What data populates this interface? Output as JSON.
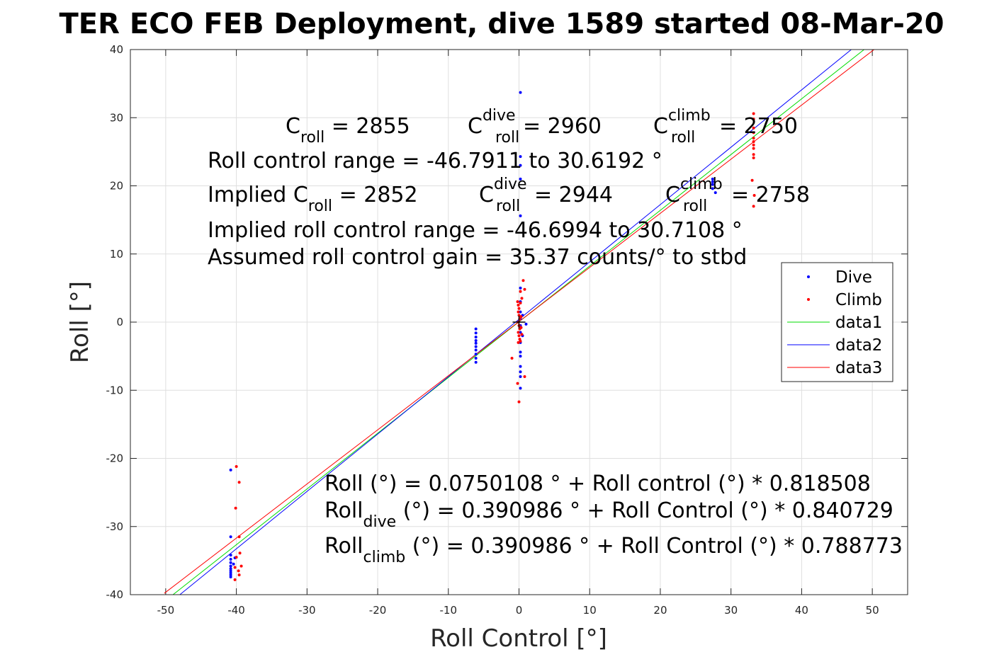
{
  "chart_data": {
    "type": "scatter",
    "title": "TER ECO FEB Deployment, dive 1589 started 08-Mar-20",
    "xlabel": "Roll Control [°]",
    "ylabel": "Roll [°]",
    "xlim": [
      -55,
      55
    ],
    "ylim": [
      -40,
      40
    ],
    "xticks": [
      -50,
      -40,
      -30,
      -20,
      -10,
      0,
      10,
      20,
      30,
      40,
      50
    ],
    "yticks": [
      -40,
      -30,
      -20,
      -10,
      0,
      10,
      20,
      30,
      40
    ],
    "xtick_labels": [
      "-50",
      "-40",
      "-30",
      "-20",
      "-10",
      "0",
      "10",
      "20",
      "30",
      "40",
      "50"
    ],
    "ytick_labels": [
      "-40",
      "-30",
      "-20",
      "-10",
      "0",
      "10",
      "20",
      "30",
      "40"
    ],
    "grid": true,
    "legend_position": "right",
    "series": [
      {
        "name": "Dive",
        "kind": "points",
        "color": "#0000ff",
        "points": [
          [
            -40.8,
            -21.7
          ],
          [
            -40.8,
            -31.5
          ],
          [
            -40.8,
            -34.2
          ],
          [
            -40.8,
            -34.8
          ],
          [
            -40.8,
            -35.3
          ],
          [
            -40.8,
            -35.8
          ],
          [
            -40.8,
            -36.2
          ],
          [
            -40.8,
            -36.5
          ],
          [
            -40.8,
            -36.8
          ],
          [
            -40.8,
            -37.1
          ],
          [
            -40.8,
            -37.4
          ],
          [
            -40.2,
            -34.6
          ],
          [
            -40.4,
            -35.5
          ],
          [
            -6.1,
            -1.0
          ],
          [
            -6.1,
            -1.6
          ],
          [
            -6.1,
            -2.2
          ],
          [
            -6.1,
            -2.7
          ],
          [
            -6.1,
            -3.1
          ],
          [
            -6.1,
            -3.6
          ],
          [
            -6.1,
            -4.1
          ],
          [
            -6.1,
            -4.7
          ],
          [
            -6.1,
            -5.3
          ],
          [
            -6.1,
            -5.9
          ],
          [
            0.2,
            33.7
          ],
          [
            0.2,
            24.3
          ],
          [
            0.2,
            23.0
          ],
          [
            0.2,
            21.0
          ],
          [
            0.2,
            15.6
          ],
          [
            0.2,
            5.0
          ],
          [
            0.2,
            3.0
          ],
          [
            0.2,
            1.5
          ],
          [
            0.2,
            0.5
          ],
          [
            0.2,
            -0.5
          ],
          [
            0.2,
            -1.5
          ],
          [
            0.2,
            -3.0
          ],
          [
            0.2,
            -4.4
          ],
          [
            0.2,
            -5.0
          ],
          [
            0.2,
            -6.5
          ],
          [
            0.2,
            -7.3
          ],
          [
            0.2,
            -8.0
          ],
          [
            0.2,
            -9.7
          ],
          [
            1.0,
            -0.3
          ],
          [
            0.5,
            1.0
          ],
          [
            0.5,
            -2.0
          ],
          [
            27.4,
            21.0
          ],
          [
            27.4,
            20.6
          ],
          [
            27.4,
            20.2
          ],
          [
            27.8,
            19.0
          ],
          [
            27.4,
            19.6
          ]
        ]
      },
      {
        "name": "Climb",
        "kind": "points",
        "color": "#ff0000",
        "points": [
          [
            -40.0,
            -21.2
          ],
          [
            -39.6,
            -23.5
          ],
          [
            -40.1,
            -27.3
          ],
          [
            -39.6,
            -31.5
          ],
          [
            -39.5,
            -33.9
          ],
          [
            -40.0,
            -34.5
          ],
          [
            -40.2,
            -36.0
          ],
          [
            -39.3,
            -35.8
          ],
          [
            -39.7,
            -36.5
          ],
          [
            -39.6,
            -37.1
          ],
          [
            -40.2,
            -37.8
          ],
          [
            -1.0,
            -5.3
          ],
          [
            -0.2,
            -9.0
          ],
          [
            0.0,
            -11.7
          ],
          [
            0.8,
            -8.0
          ],
          [
            0.6,
            6.1
          ],
          [
            0.8,
            4.8
          ],
          [
            0.2,
            4.5
          ],
          [
            0.4,
            3.5
          ],
          [
            -0.2,
            3.0
          ],
          [
            -0.1,
            2.5
          ],
          [
            0.0,
            2.0
          ],
          [
            -0.1,
            1.5
          ],
          [
            0.0,
            1.0
          ],
          [
            0.1,
            0.5
          ],
          [
            -0.1,
            0.0
          ],
          [
            0.0,
            -0.5
          ],
          [
            0.1,
            -1.0
          ],
          [
            -0.1,
            -1.5
          ],
          [
            0.0,
            -2.0
          ],
          [
            0.1,
            -2.5
          ],
          [
            -0.1,
            -3.0
          ],
          [
            0.3,
            -0.8
          ],
          [
            0.4,
            -1.8
          ],
          [
            0.3,
            0.8
          ],
          [
            0.2,
            2.8
          ],
          [
            0.2,
            -2.8
          ],
          [
            33.2,
            30.6
          ],
          [
            33.2,
            29.8
          ],
          [
            33.2,
            28.5
          ],
          [
            33.2,
            27.8
          ],
          [
            33.2,
            27.0
          ],
          [
            33.2,
            26.5
          ],
          [
            33.2,
            26.0
          ],
          [
            33.2,
            25.5
          ],
          [
            33.2,
            24.6
          ],
          [
            33.2,
            24.1
          ],
          [
            33.0,
            20.8
          ],
          [
            33.3,
            18.6
          ],
          [
            33.2,
            17.0
          ]
        ]
      },
      {
        "name": "data1",
        "kind": "line",
        "color": "#00dd00",
        "x": [
          -49,
          50
        ],
        "y": [
          -40.03,
          40.95
        ]
      },
      {
        "name": "data2",
        "kind": "line",
        "color": "#0000ff",
        "x": [
          -48,
          47.5
        ],
        "y": [
          -40.0,
          40.4
        ]
      },
      {
        "name": "data3",
        "kind": "line",
        "color": "#ff0000",
        "x": [
          -50.2,
          50.5
        ],
        "y": [
          -39.8,
          40.2
        ]
      }
    ],
    "marker": {
      "x": 0,
      "y": 0,
      "symbol": "+",
      "color": "#000000"
    },
    "annotations": {
      "row1": [
        {
          "main": "C",
          "sub": "roll",
          "sup": "",
          "value": " = 2855"
        },
        {
          "main": "C",
          "sub": "roll",
          "sup": "dive",
          "value": " = 2960"
        },
        {
          "main": "C",
          "sub": "roll",
          "sup": "climb",
          "value": " = 2750"
        }
      ],
      "control_range": "Roll control range = -46.7911 to 30.6192 °",
      "row2": [
        {
          "main": "Implied C",
          "sub": "roll",
          "sup": "",
          "value": " = 2852"
        },
        {
          "main": "C",
          "sub": "roll",
          "sup": "dive",
          "value": " = 2944"
        },
        {
          "main": "C",
          "sub": "roll",
          "sup": "climb",
          "value": " = 2758"
        }
      ],
      "implied_range": "Implied roll control range = -46.6994 to 30.7108 °",
      "gain": "Assumed roll control gain = 35.37 counts/° to stbd",
      "fit_all": "Roll (°) = 0.0750108 ° + Roll control (°) * 0.818508",
      "fit_dive_main": "Roll",
      "fit_dive_sub": "dive",
      "fit_dive_rest": " (°) = 0.390986 ° + Roll Control (°) * 0.840729",
      "fit_climb_main": "Roll",
      "fit_climb_sub": "climb",
      "fit_climb_rest": " (°) = 0.390986 ° + Roll Control (°) * 0.788773"
    }
  }
}
